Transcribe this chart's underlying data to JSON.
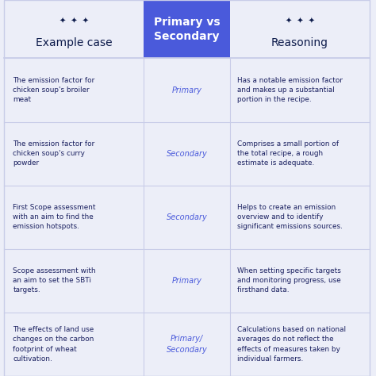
{
  "title_col1": "Example case",
  "title_col2": "Primary vs\nSecondary",
  "title_col3": "Reasoning",
  "bg_color": "#eceef8",
  "header_bg": "#4a5adb",
  "header_text_color": "#ffffff",
  "title_text_color": "#0d1b4b",
  "cell_text_color": "#1a2060",
  "label_color": "#4a5adb",
  "grid_color": "#c8cce8",
  "rows": [
    {
      "col1": "The emission factor for\nchicken soup's broiler\nmeat",
      "col2": "Primary",
      "col3": "Has a notable emission factor\nand makes up a substantial\nportion in the recipe."
    },
    {
      "col1": "The emission factor for\nchicken soup's curry\npowder",
      "col2": "Secondary",
      "col3": "Comprises a small portion of\nthe total recipe, a rough\nestimate is adequate."
    },
    {
      "col1": "First Scope assessment\nwith an aim to find the\nemission hotspots.",
      "col2": "Secondary",
      "col3": "Helps to create an emission\noverview and to identify\nsignificant emissions sources."
    },
    {
      "col1": "Scope assessment with\nan aim to set the SBTi\ntargets.",
      "col2": "Primary",
      "col3": "When setting specific targets\nand monitoring progress, use\nfirsthand data."
    },
    {
      "col1": "The effects of land use\nchanges on the carbon\nfootprint of wheat\ncultivation.",
      "col2": "Primary/\nSecondary",
      "col3": "Calculations based on national\naverages do not reflect the\neffects of measures taken by\nindividual farmers."
    }
  ]
}
